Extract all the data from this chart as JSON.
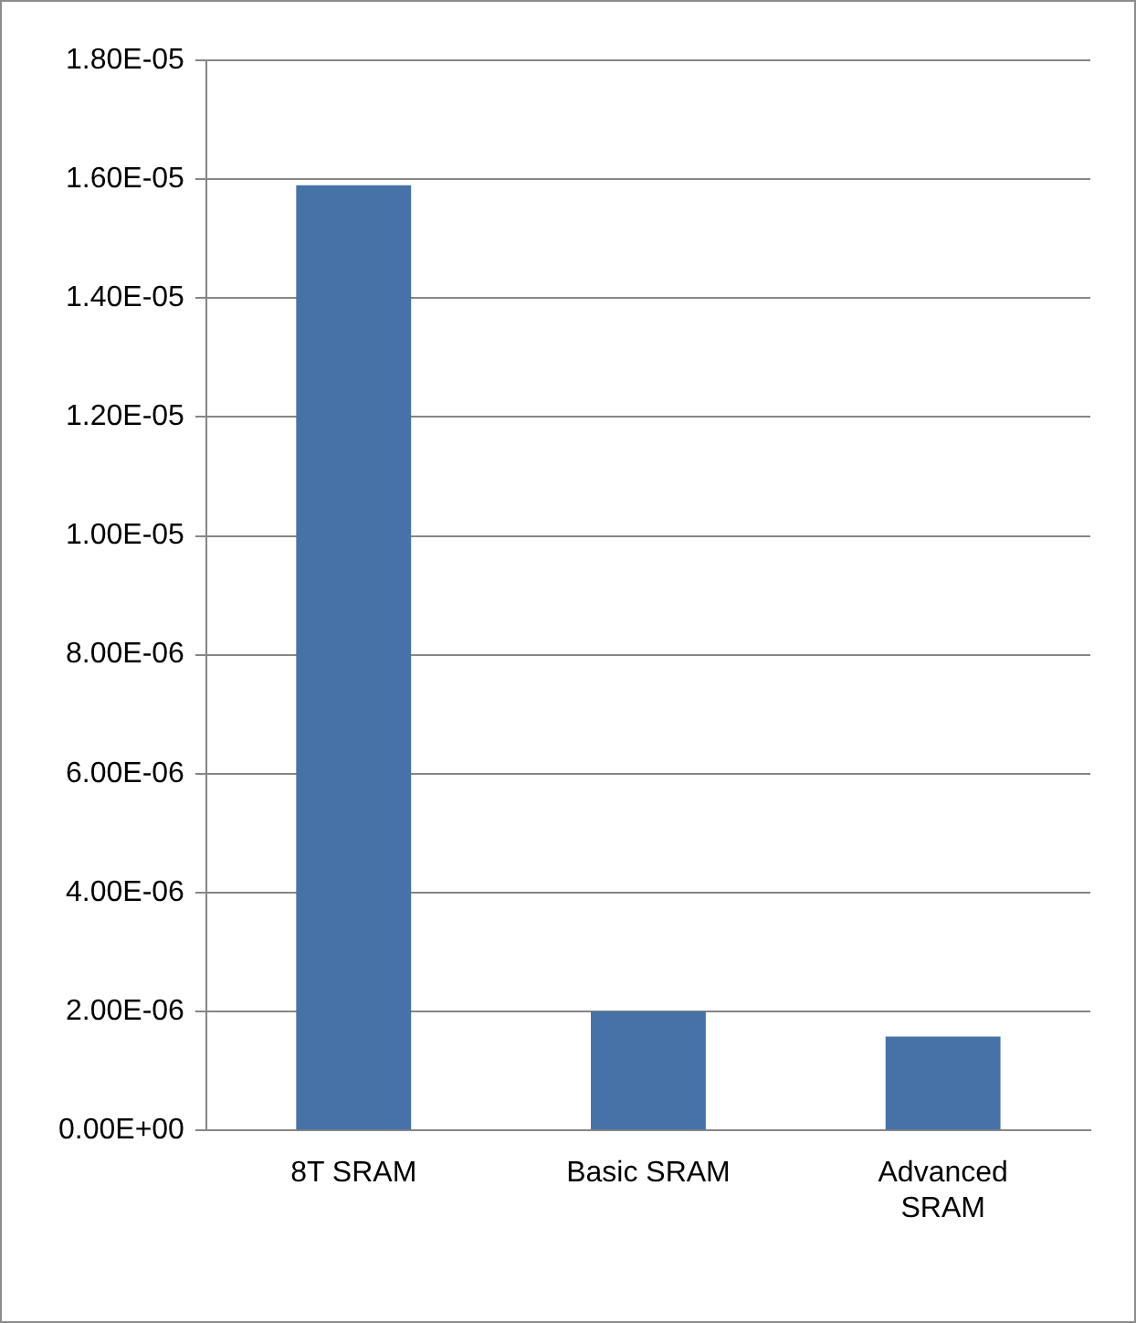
{
  "chart_data": {
    "type": "bar",
    "categories": [
      "8T SRAM",
      "Basic SRAM",
      "Advanced SRAM"
    ],
    "values": [
      1.59e-05,
      2e-06,
      1.58e-06
    ],
    "color": "#4672a8",
    "ylim": [
      0,
      1.8e-05
    ],
    "yticks": [
      {
        "value": 0,
        "label": "0.00E+00"
      },
      {
        "value": 2e-06,
        "label": "2.00E-06"
      },
      {
        "value": 4e-06,
        "label": "4.00E-06"
      },
      {
        "value": 6e-06,
        "label": "6.00E-06"
      },
      {
        "value": 8e-06,
        "label": "8.00E-06"
      },
      {
        "value": 1e-05,
        "label": "1.00E-05"
      },
      {
        "value": 1.2e-05,
        "label": "1.20E-05"
      },
      {
        "value": 1.4e-05,
        "label": "1.40E-05"
      },
      {
        "value": 1.6e-05,
        "label": "1.60E-05"
      },
      {
        "value": 1.8e-05,
        "label": "1.80E-05"
      }
    ],
    "grid": "y",
    "legend": false
  }
}
